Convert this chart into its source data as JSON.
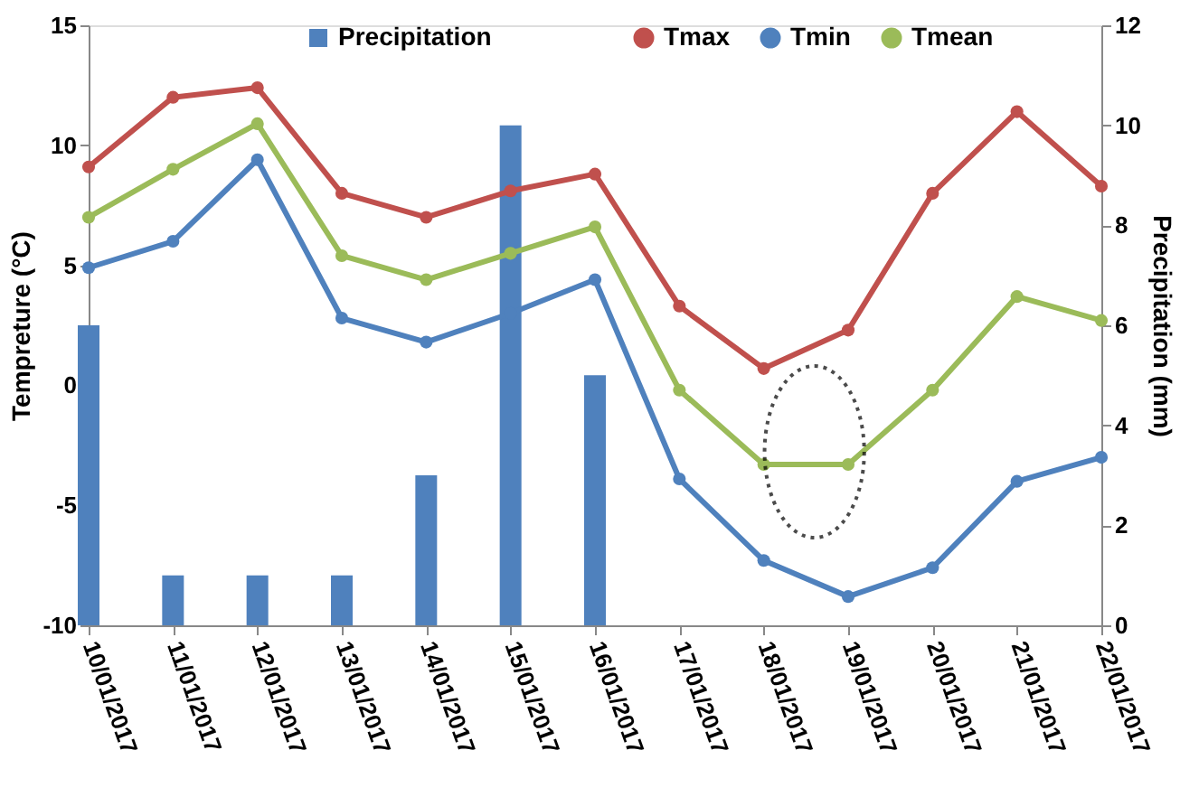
{
  "chart_data": {
    "type": "line",
    "xlabel": null,
    "ylabel": "Tempreture (°C)",
    "y2label": "Precipitation (mm)",
    "x": [
      "2017-01-10",
      "2017-01-11",
      "2017-01-12",
      "2017-01-13",
      "2017-01-14",
      "2017-01-15",
      "2017-01-16",
      "2017-01-17",
      "2017-01-18",
      "2017-01-19",
      "2017-01-20",
      "2017-01-21",
      "2017-01-22"
    ],
    "xlim": [
      "2017-01-10",
      "2017-01-22"
    ],
    "xticks": [
      {
        "value": "2017-01-10",
        "label": "10/01/2017"
      },
      {
        "value": "2017-01-11",
        "label": "11/01/2017"
      },
      {
        "value": "2017-01-12",
        "label": "12/01/2017"
      },
      {
        "value": "2017-01-13",
        "label": "13/01/2017"
      },
      {
        "value": "2017-01-14",
        "label": "14/01/2017"
      },
      {
        "value": "2017-01-15",
        "label": "15/01/2017"
      },
      {
        "value": "2017-01-16",
        "label": "16/01/2017"
      },
      {
        "value": "2017-01-17",
        "label": "17/01/2017"
      },
      {
        "value": "2017-01-18",
        "label": "18/01/2017"
      },
      {
        "value": "2017-01-19",
        "label": "19/01/2017"
      },
      {
        "value": "2017-01-20",
        "label": "20/01/2017"
      },
      {
        "value": "2017-01-21",
        "label": "21/01/2017"
      },
      {
        "value": "2017-01-22",
        "label": "22/01/2017"
      }
    ],
    "ylim": [
      -10,
      15
    ],
    "yticks": [
      -10,
      -5,
      0,
      5,
      10,
      15
    ],
    "y2lim": [
      0,
      12
    ],
    "y2ticks": [
      0,
      2,
      4,
      6,
      8,
      10,
      12
    ],
    "series": [
      {
        "name": "Precipitation",
        "type": "bar",
        "axis": "y2",
        "color": "#4f81bd",
        "x": [
          "2017-01-10",
          "2017-01-11",
          "2017-01-12",
          "2017-01-13",
          "2017-01-14",
          "2017-01-15",
          "2017-01-16"
        ],
        "values": [
          6,
          1,
          1,
          1,
          3,
          10,
          5
        ]
      },
      {
        "name": "Tmax",
        "color": "#c0504d",
        "values": [
          9.1,
          12.0,
          12.4,
          8.0,
          7.0,
          8.1,
          8.8,
          3.3,
          0.7,
          2.3,
          8.0,
          11.4,
          8.3
        ]
      },
      {
        "name": "Tmin",
        "color": "#4f81bd",
        "values": [
          4.9,
          6.0,
          9.4,
          2.8,
          1.8,
          3.0,
          4.4,
          -3.9,
          -7.3,
          -8.8,
          -7.6,
          -4.0,
          -3.0
        ]
      },
      {
        "name": "Tmean",
        "color": "#9bbb59",
        "values": [
          7.0,
          9.0,
          10.9,
          5.4,
          4.4,
          5.5,
          6.6,
          -0.2,
          -3.3,
          -3.3,
          -0.2,
          3.7,
          2.7
        ]
      }
    ],
    "marker": "circle",
    "line_style": "solid",
    "grid": false,
    "legend": "top"
  }
}
